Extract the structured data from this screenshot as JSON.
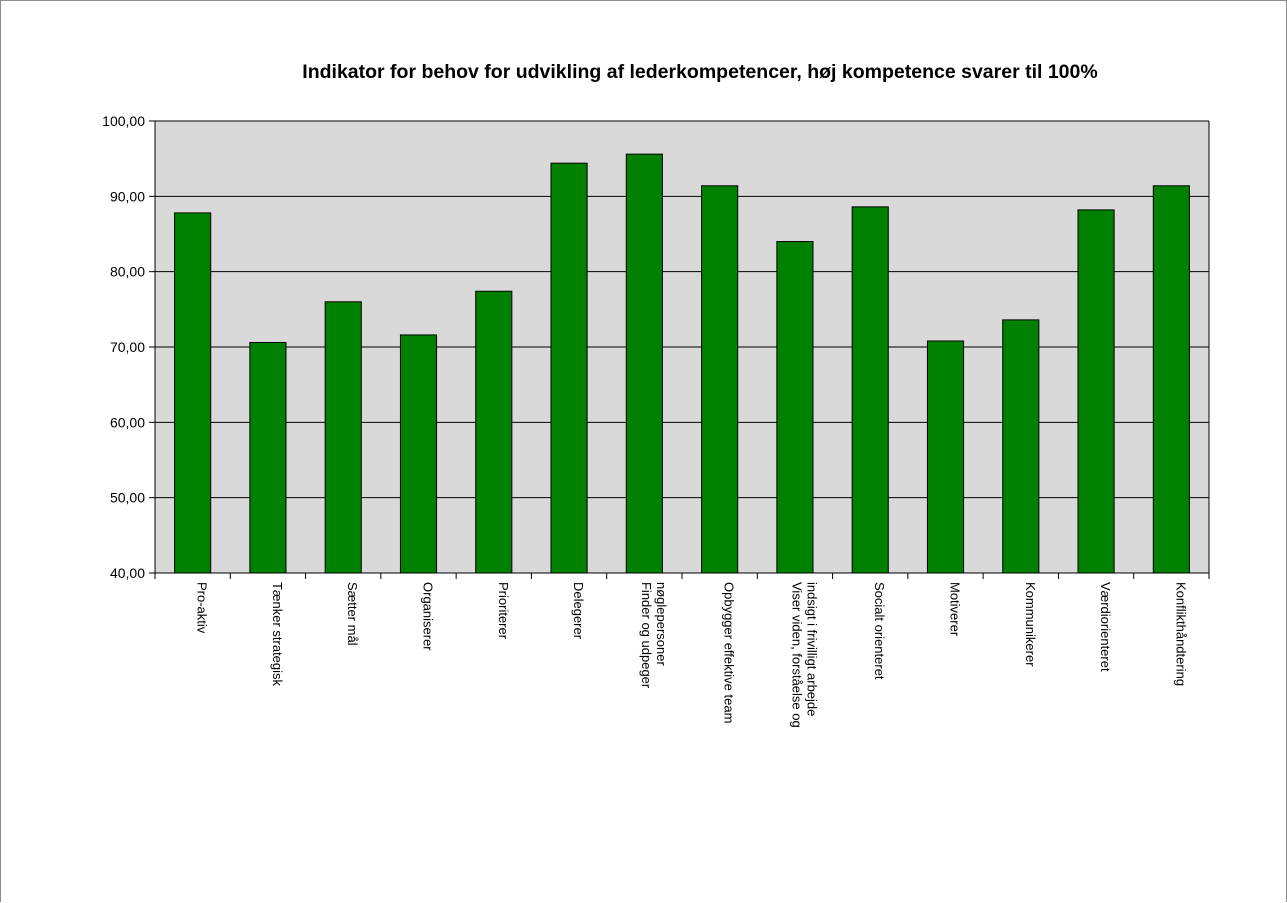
{
  "chart_data": {
    "type": "bar",
    "title": "Indikator for behov for udvikling af lederkompetencer, høj kompetence svarer til 100%",
    "xlabel": "",
    "ylabel": "",
    "ylim": [
      40,
      100
    ],
    "yticks": [
      "40,00",
      "50,00",
      "60,00",
      "70,00",
      "80,00",
      "90,00",
      "100,00"
    ],
    "grid": true,
    "legend": "none",
    "categories": [
      [
        "Pro-aktiv"
      ],
      [
        "Tænker strategisk"
      ],
      [
        "Sætter mål"
      ],
      [
        "Organiserer"
      ],
      [
        "Prioriterer"
      ],
      [
        "Delegerer"
      ],
      [
        "Finder og udpeger",
        "nøglepersoner"
      ],
      [
        "Opbygger effektive team"
      ],
      [
        "Viser viden, forståelse og",
        "indsigt i frivilligt arbejde"
      ],
      [
        "Socialt orienteret"
      ],
      [
        "Motiverer"
      ],
      [
        "Kommunikerer"
      ],
      [
        "Værdiorienteret"
      ],
      [
        "Konflikthåndtering"
      ]
    ],
    "values": [
      87.8,
      70.6,
      76.0,
      71.6,
      77.4,
      94.4,
      95.6,
      91.4,
      84.0,
      88.6,
      70.8,
      73.6,
      88.2,
      91.4
    ],
    "colors": {
      "bar": "#008000",
      "bar_stroke": "#000000",
      "plot_bg": "#d9d9d9",
      "grid": "#000000"
    }
  }
}
